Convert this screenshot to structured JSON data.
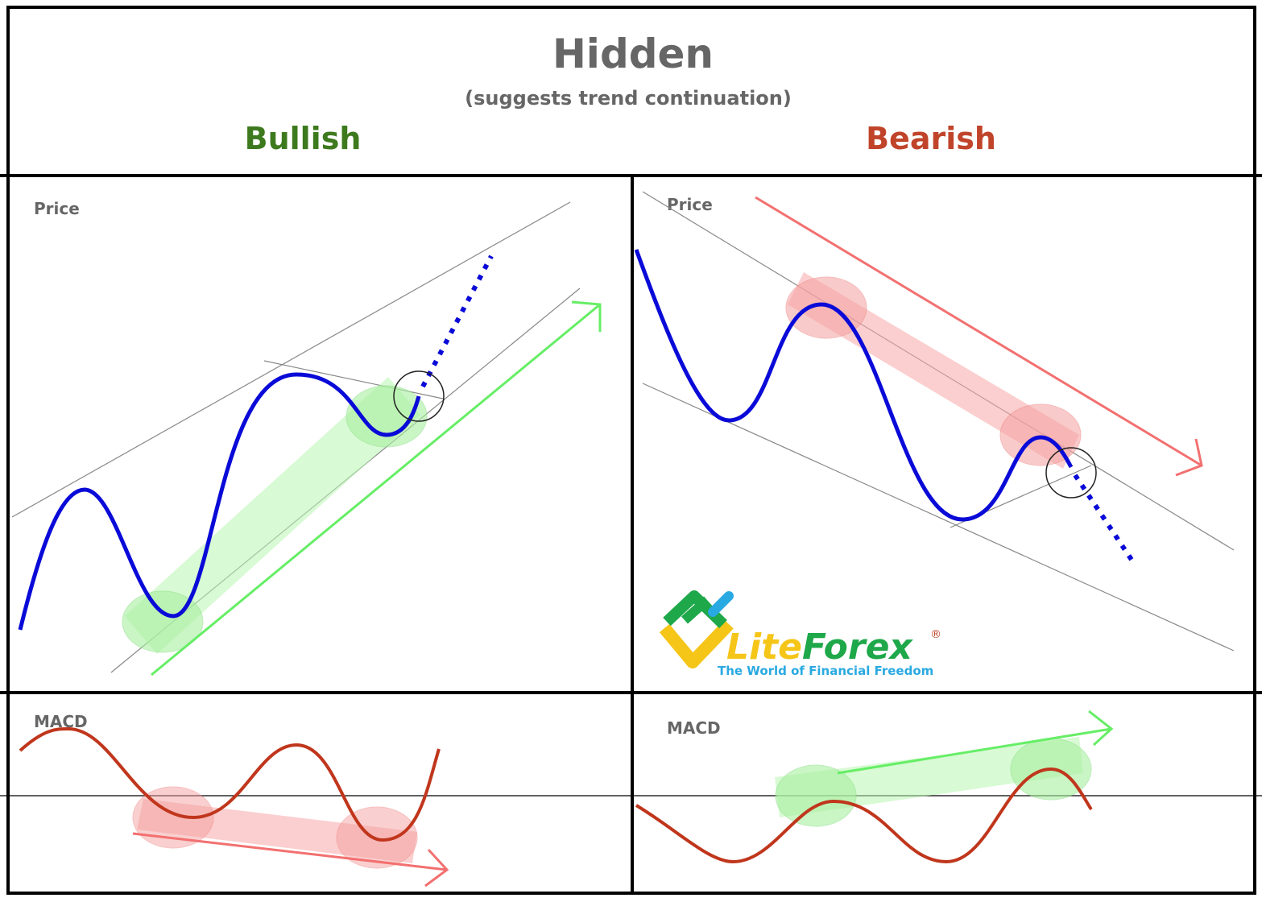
{
  "header": {
    "title": "Hidden",
    "subtitle": "(suggests trend continuation)"
  },
  "columns": [
    {
      "label": "Bullish",
      "price_label": "Price",
      "indicator_label": "MACD"
    },
    {
      "label": "Bearish",
      "price_label": "Price",
      "indicator_label": "MACD"
    }
  ],
  "logo": {
    "part1": "Lite",
    "part2": "Forex",
    "mark": "®",
    "tagline": "The World of Financial Freedom"
  }
}
